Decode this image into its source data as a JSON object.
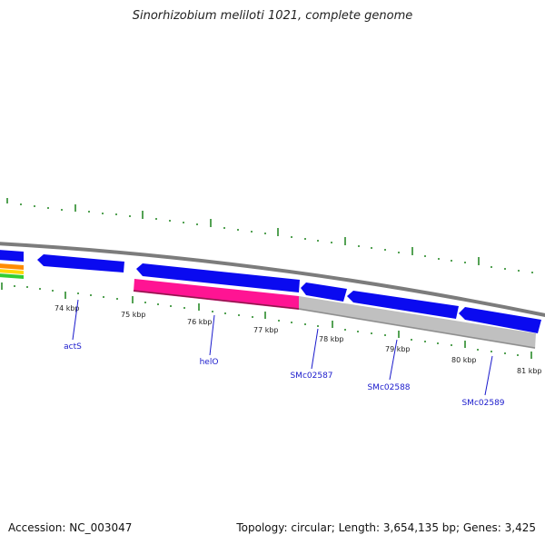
{
  "title": "Sinorhizobium meliloti 1021, complete genome",
  "footer": {
    "accession": "Accession: NC_003047",
    "summary": "Topology: circular; Length: 3,654,135 bp; Genes: 3,425"
  },
  "colors": {
    "backbone": "#808080",
    "gene_forward": "#0a0af0",
    "gene_reverse": "#0a0af0",
    "feature_pink": "#ff1493",
    "feature_gray": "#c0c0c0",
    "tick": "#2a8a2a",
    "label": "#1a1acc"
  },
  "scale_labels": [
    "74 kbp",
    "75 kbp",
    "76 kbp",
    "77 kbp",
    "78 kbp",
    "79 kbp",
    "80 kbp",
    "81 kbp"
  ],
  "genes": [
    "actS",
    "helO",
    "SMc02587",
    "SMc02588",
    "SMc02589"
  ]
}
